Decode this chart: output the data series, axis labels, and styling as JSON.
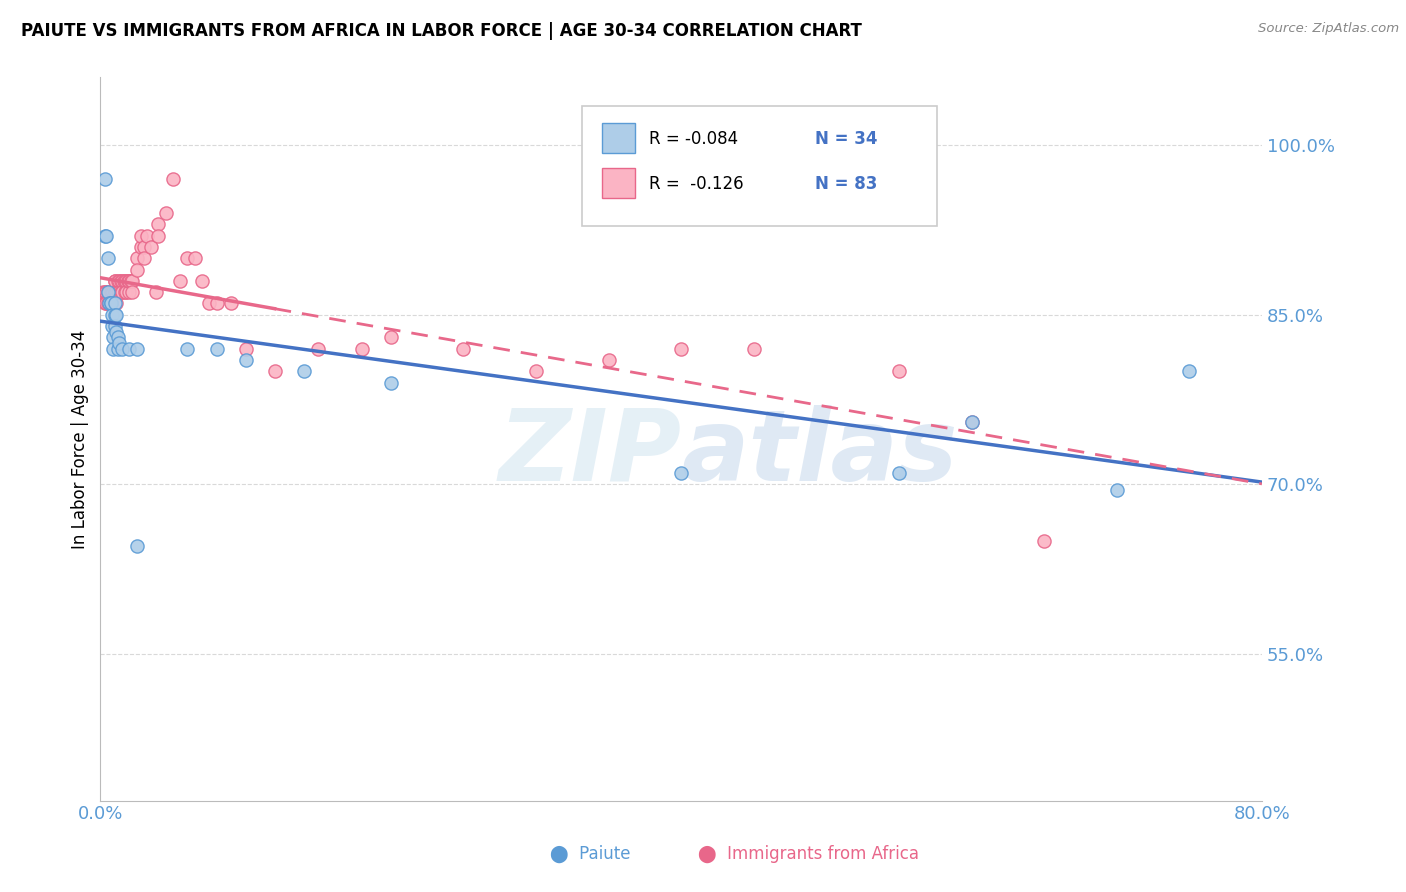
{
  "title": "PAIUTE VS IMMIGRANTS FROM AFRICA IN LABOR FORCE | AGE 30-34 CORRELATION CHART",
  "source": "Source: ZipAtlas.com",
  "ylabel": "In Labor Force | Age 30-34",
  "xlim": [
    0.0,
    0.8
  ],
  "ylim": [
    0.42,
    1.06
  ],
  "yticks": [
    0.55,
    0.7,
    0.85,
    1.0
  ],
  "ytick_labels": [
    "55.0%",
    "70.0%",
    "85.0%",
    "100.0%"
  ],
  "xticks": [
    0.0,
    0.1,
    0.2,
    0.3,
    0.4,
    0.5,
    0.6,
    0.7,
    0.8
  ],
  "xtick_labels": [
    "0.0%",
    "",
    "",
    "",
    "",
    "",
    "",
    "",
    "80.0%"
  ],
  "watermark": "ZIPatlas",
  "paiute_color": "#aecde8",
  "africa_color": "#fbb4c4",
  "paiute_edge_color": "#5b9bd5",
  "africa_edge_color": "#e8678a",
  "paiute_line_color": "#4472c4",
  "africa_line_color": "#e8688a",
  "axis_color": "#5b9bd5",
  "legend_box_color": "#dddddd",
  "paiute_r": "R = -0.084",
  "paiute_n": "N = 34",
  "africa_r": "R =  -0.126",
  "africa_n": "N = 83",
  "paiute_scatter_x": [
    0.003,
    0.003,
    0.004,
    0.005,
    0.005,
    0.006,
    0.007,
    0.007,
    0.008,
    0.008,
    0.009,
    0.009,
    0.01,
    0.01,
    0.01,
    0.011,
    0.011,
    0.012,
    0.012,
    0.013,
    0.015,
    0.02,
    0.025,
    0.025,
    0.06,
    0.08,
    0.1,
    0.14,
    0.2,
    0.4,
    0.55,
    0.6,
    0.7,
    0.75
  ],
  "paiute_scatter_y": [
    0.97,
    0.92,
    0.92,
    0.9,
    0.87,
    0.86,
    0.86,
    0.86,
    0.85,
    0.84,
    0.83,
    0.82,
    0.86,
    0.85,
    0.84,
    0.85,
    0.835,
    0.83,
    0.82,
    0.825,
    0.82,
    0.82,
    0.82,
    0.645,
    0.82,
    0.82,
    0.81,
    0.8,
    0.79,
    0.71,
    0.71,
    0.755,
    0.695,
    0.8
  ],
  "africa_scatter_x": [
    0.002,
    0.003,
    0.003,
    0.004,
    0.004,
    0.005,
    0.005,
    0.005,
    0.006,
    0.006,
    0.006,
    0.006,
    0.007,
    0.007,
    0.007,
    0.008,
    0.008,
    0.008,
    0.008,
    0.009,
    0.009,
    0.009,
    0.01,
    0.01,
    0.01,
    0.01,
    0.01,
    0.01,
    0.011,
    0.011,
    0.012,
    0.012,
    0.013,
    0.013,
    0.014,
    0.014,
    0.015,
    0.015,
    0.016,
    0.017,
    0.017,
    0.018,
    0.018,
    0.019,
    0.02,
    0.02,
    0.02,
    0.021,
    0.022,
    0.022,
    0.025,
    0.025,
    0.028,
    0.028,
    0.03,
    0.03,
    0.032,
    0.035,
    0.038,
    0.04,
    0.04,
    0.045,
    0.05,
    0.055,
    0.06,
    0.065,
    0.07,
    0.075,
    0.08,
    0.09,
    0.1,
    0.12,
    0.15,
    0.18,
    0.2,
    0.25,
    0.3,
    0.35,
    0.4,
    0.45,
    0.55,
    0.6,
    0.65
  ],
  "africa_scatter_y": [
    0.87,
    0.87,
    0.86,
    0.87,
    0.86,
    0.87,
    0.86,
    0.87,
    0.87,
    0.87,
    0.87,
    0.86,
    0.87,
    0.87,
    0.86,
    0.87,
    0.87,
    0.87,
    0.86,
    0.87,
    0.87,
    0.86,
    0.88,
    0.88,
    0.87,
    0.87,
    0.87,
    0.86,
    0.87,
    0.86,
    0.88,
    0.87,
    0.88,
    0.87,
    0.87,
    0.88,
    0.88,
    0.87,
    0.88,
    0.87,
    0.88,
    0.88,
    0.87,
    0.88,
    0.88,
    0.87,
    0.88,
    0.88,
    0.88,
    0.87,
    0.9,
    0.89,
    0.91,
    0.92,
    0.91,
    0.9,
    0.92,
    0.91,
    0.87,
    0.93,
    0.92,
    0.94,
    0.97,
    0.88,
    0.9,
    0.9,
    0.88,
    0.86,
    0.86,
    0.86,
    0.82,
    0.8,
    0.82,
    0.82,
    0.83,
    0.82,
    0.8,
    0.81,
    0.82,
    0.82,
    0.8,
    0.755,
    0.65
  ]
}
